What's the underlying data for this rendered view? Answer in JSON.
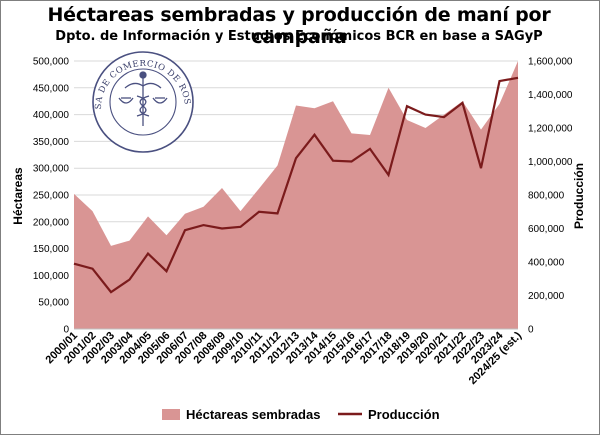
{
  "title": "Héctareas sembradas y producción de maní por campaña",
  "subtitle": "Dpto. de Información y Estudios Económicos BCR en base a SAGyP",
  "seal_text": "BOLSA DE COMERCIO DE ROSARIO",
  "chart_data": {
    "type": "area",
    "categories": [
      "2000/01",
      "2001/02",
      "2002/03",
      "2003/04",
      "2004/05",
      "2005/06",
      "2006/07",
      "2007/08",
      "2008/09",
      "2009/10",
      "2010/11",
      "2011/12",
      "2012/13",
      "2013/14",
      "2014/15",
      "2015/16",
      "2016/17",
      "2017/18",
      "2018/19",
      "2019/20",
      "2020/21",
      "2021/22",
      "2022/23",
      "2023/24",
      "2024/25 (est.)"
    ],
    "series": [
      {
        "name": "Héctareas sembradas",
        "type": "area",
        "axis": "left",
        "color": "#d99594",
        "values": [
          252000,
          220000,
          155000,
          165000,
          210000,
          175000,
          215000,
          228000,
          263000,
          220000,
          262000,
          305000,
          417000,
          412000,
          425000,
          365000,
          362000,
          450000,
          390000,
          375000,
          400000,
          425000,
          372000,
          420000,
          500000
        ]
      },
      {
        "name": "Producción",
        "type": "line",
        "axis": "right",
        "color": "#7b1b1c",
        "values": [
          390000,
          360000,
          220000,
          295000,
          450000,
          345000,
          590000,
          620000,
          600000,
          610000,
          700000,
          690000,
          1020000,
          1160000,
          1005000,
          1000000,
          1075000,
          920000,
          1330000,
          1280000,
          1265000,
          1350000,
          960000,
          1480000,
          1500000
        ]
      }
    ],
    "ylabel": "Héctareas",
    "y2label": "Producción",
    "ylim": [
      0,
      500000
    ],
    "y2lim": [
      0,
      1600000
    ],
    "yticks": [
      "0",
      "50,000",
      "100,000",
      "150,000",
      "200,000",
      "250,000",
      "300,000",
      "350,000",
      "400,000",
      "450,000",
      "500,000"
    ],
    "y2ticks": [
      "0",
      "200,000",
      "400,000",
      "600,000",
      "800,000",
      "1,000,000",
      "1,200,000",
      "1,400,000",
      "1,600,000"
    ],
    "grid": true,
    "legend_position": "bottom"
  }
}
